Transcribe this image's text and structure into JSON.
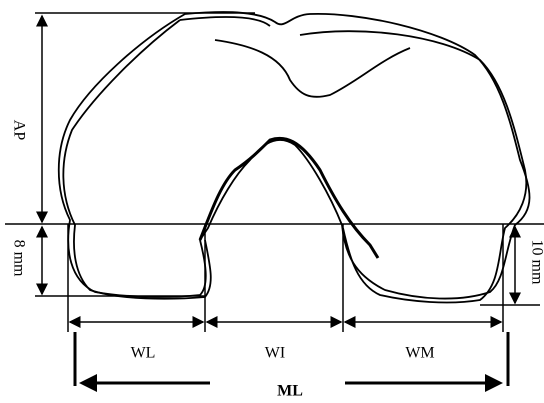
{
  "dimensions": {
    "ap": "AP",
    "small_gap": "8 mm",
    "large_gap": "10 mm",
    "wl": "WL",
    "wi": "WI",
    "wm": "WM",
    "ml": "ML"
  }
}
